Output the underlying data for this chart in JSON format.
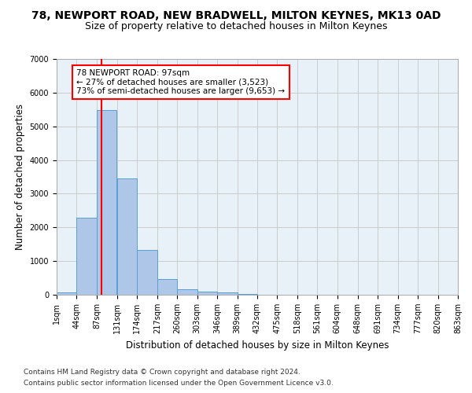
{
  "title1": "78, NEWPORT ROAD, NEW BRADWELL, MILTON KEYNES, MK13 0AD",
  "title2": "Size of property relative to detached houses in Milton Keynes",
  "xlabel": "Distribution of detached houses by size in Milton Keynes",
  "ylabel": "Number of detached properties",
  "footnote1": "Contains HM Land Registry data © Crown copyright and database right 2024.",
  "footnote2": "Contains public sector information licensed under the Open Government Licence v3.0.",
  "bins": [
    1,
    44,
    87,
    131,
    174,
    217,
    260,
    303,
    346,
    389,
    432,
    475,
    518,
    561,
    604,
    648,
    691,
    734,
    777,
    820,
    863
  ],
  "counts": [
    80,
    2280,
    5480,
    3450,
    1320,
    475,
    170,
    90,
    65,
    30,
    10,
    5,
    3,
    2,
    1,
    1,
    0,
    0,
    0,
    0
  ],
  "bar_color": "#aec6e8",
  "bar_edge_color": "#5a9fd4",
  "red_line_x": 97,
  "annotation_line1": "78 NEWPORT ROAD: 97sqm",
  "annotation_line2": "← 27% of detached houses are smaller (3,523)",
  "annotation_line3": "73% of semi-detached houses are larger (9,653) →",
  "annotation_box_color": "white",
  "annotation_border_color": "red",
  "red_line_color": "red",
  "ylim": [
    0,
    7000
  ],
  "yticks": [
    0,
    1000,
    2000,
    3000,
    4000,
    5000,
    6000,
    7000
  ],
  "grid_color": "#cccccc",
  "bg_color": "#e8f0f8",
  "title1_fontsize": 10,
  "title2_fontsize": 9,
  "xlabel_fontsize": 8.5,
  "ylabel_fontsize": 8.5,
  "tick_fontsize": 7,
  "footnote_fontsize": 6.5,
  "annot_fontsize": 7.5
}
